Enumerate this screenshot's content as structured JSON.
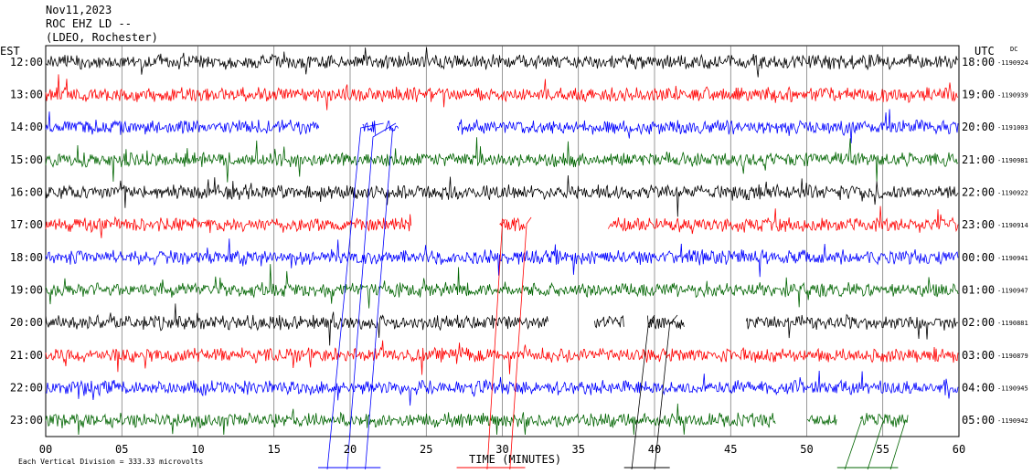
{
  "header": {
    "date": "Nov11,2023",
    "station": "ROC EHZ LD --",
    "network": "(LDEO, Rochester)"
  },
  "chart_data": {
    "type": "line",
    "title": "",
    "xlabel": "TIME (MINUTES)",
    "ylabel": "",
    "left_timezone": "EST",
    "right_timezone": "UTC",
    "dc_label": "DC",
    "x_ticks": [
      "00",
      "05",
      "10",
      "15",
      "20",
      "25",
      "30",
      "35",
      "40",
      "45",
      "50",
      "55",
      "60"
    ],
    "xlim": [
      0,
      60
    ],
    "grid": true,
    "colors": [
      "#000000",
      "#ff0000",
      "#0000ff",
      "#006400"
    ],
    "scale_note": "Each Vertical Division =  333.33 microvolts",
    "rows": [
      {
        "est": "12:00",
        "utc": "18:00",
        "dc": "-1190924",
        "color": "#000000",
        "gaps": []
      },
      {
        "est": "13:00",
        "utc": "19:00",
        "dc": "-1190939",
        "color": "#ff0000",
        "gaps": []
      },
      {
        "est": "14:00",
        "utc": "20:00",
        "dc": "-1191003",
        "color": "#0000ff",
        "gaps": [
          [
            18.0,
            20.8
          ],
          [
            21.7,
            22.3
          ],
          [
            23.2,
            27.0
          ]
        ]
      },
      {
        "est": "15:00",
        "utc": "21:00",
        "dc": "-1190981",
        "color": "#006400",
        "gaps": []
      },
      {
        "est": "16:00",
        "utc": "22:00",
        "dc": "-1190922",
        "color": "#000000",
        "gaps": []
      },
      {
        "est": "17:00",
        "utc": "23:00",
        "dc": "-1190914",
        "color": "#ff0000",
        "gaps": [
          [
            24.0,
            29.8
          ],
          [
            31.5,
            36.9
          ]
        ]
      },
      {
        "est": "18:00",
        "utc": "00:00",
        "dc": "-1190941",
        "color": "#0000ff",
        "gaps": []
      },
      {
        "est": "19:00",
        "utc": "01:00",
        "dc": "-1190947",
        "color": "#006400",
        "gaps": []
      },
      {
        "est": "20:00",
        "utc": "02:00",
        "dc": "-1190881",
        "color": "#000000",
        "gaps": [
          [
            33.0,
            36.0
          ],
          [
            38.0,
            39.5
          ],
          [
            42.0,
            46.0
          ]
        ]
      },
      {
        "est": "21:00",
        "utc": "03:00",
        "dc": "-1190879",
        "color": "#ff0000",
        "gaps": []
      },
      {
        "est": "22:00",
        "utc": "04:00",
        "dc": "-1190945",
        "color": "#0000ff",
        "gaps": []
      },
      {
        "est": "23:00",
        "utc": "05:00",
        "dc": "-1190942",
        "color": "#006400",
        "gaps": [
          [
            48.0,
            50.0
          ],
          [
            52.0,
            53.5
          ],
          [
            56.7,
            60.0
          ]
        ]
      }
    ]
  }
}
